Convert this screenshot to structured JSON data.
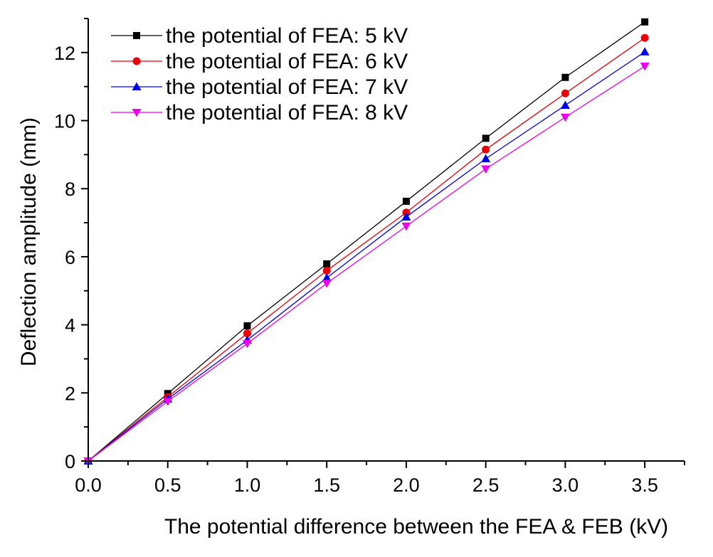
{
  "chart_data": {
    "type": "line",
    "title": "",
    "xlabel": "The potential difference between the FEA & FEB (kV)",
    "ylabel": "Deflection amplitude (mm)",
    "xlim": [
      0,
      3.75
    ],
    "ylim": [
      0,
      13
    ],
    "x": [
      0,
      0.5,
      1.0,
      1.5,
      2.0,
      2.5,
      3.0,
      3.5
    ],
    "x_ticks": [
      0,
      0.5,
      1.0,
      1.5,
      2.0,
      2.5,
      3.0,
      3.5
    ],
    "x_tick_labels": [
      "0.0",
      "0.5",
      "1.0",
      "1.5",
      "2.0",
      "2.5",
      "3.0",
      "3.5"
    ],
    "y_ticks": [
      0,
      2,
      4,
      6,
      8,
      10,
      12
    ],
    "y_tick_labels": [
      "0",
      "2",
      "4",
      "6",
      "8",
      "10",
      "12"
    ],
    "grid": false,
    "legend_position": "top-left",
    "series": [
      {
        "name": "the potential of FEA: 5 kV",
        "color": "#000000",
        "marker": "square",
        "values": [
          0,
          1.98,
          3.97,
          5.79,
          7.63,
          9.48,
          11.27,
          12.9
        ]
      },
      {
        "name": "the potential of FEA: 6 kV",
        "color": "#e8000b",
        "marker": "circle",
        "values": [
          0,
          1.88,
          3.75,
          5.59,
          7.3,
          9.15,
          10.8,
          12.43
        ]
      },
      {
        "name": "the potential of FEA: 7 kV",
        "color": "#0000ee",
        "marker": "triangle-up",
        "values": [
          0,
          1.82,
          3.55,
          5.38,
          7.17,
          8.88,
          10.45,
          12.02
        ]
      },
      {
        "name": "the potential of FEA: 8 kV",
        "color": "#ee00ee",
        "marker": "triangle-down",
        "values": [
          0,
          1.75,
          3.45,
          5.22,
          6.9,
          8.58,
          10.1,
          11.6
        ]
      }
    ]
  }
}
